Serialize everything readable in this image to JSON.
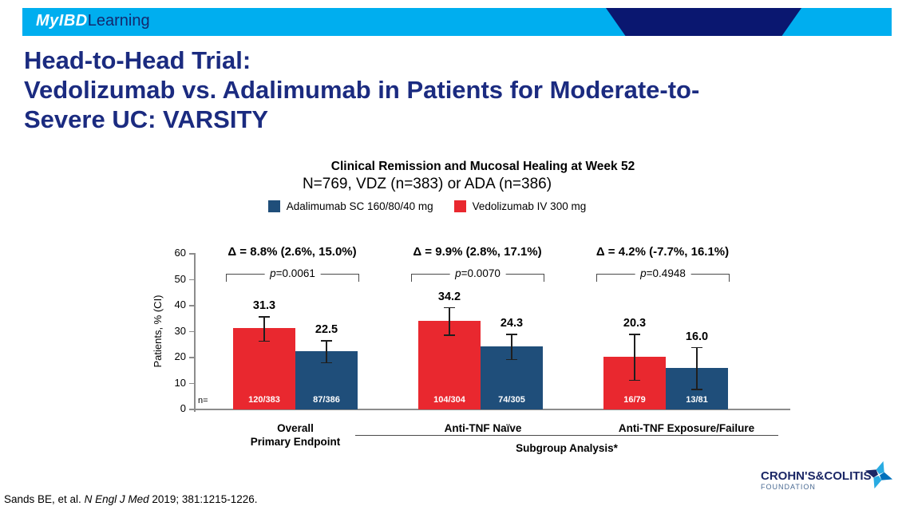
{
  "header": {
    "logo_myibd": "MyIBD",
    "logo_learning": "Learning",
    "bar_color": "#00AEEF",
    "accent_color": "#0A1770"
  },
  "title": {
    "lines": [
      "Head-to-Head Trial:",
      "Vedolizumab vs. Adalimumab in Patients for Moderate-to-",
      "Severe UC: VARSITY"
    ],
    "color": "#1B2B80"
  },
  "legend": [
    {
      "label": "Adalimumab SC 160/80/40 mg",
      "color": "#1F4E7A"
    },
    {
      "label": "Vedolizumab IV 300 mg",
      "color": "#E9282F"
    }
  ],
  "chart_data": {
    "type": "bar",
    "title": "Clinical Remission and Mucosal Healing at Week 52",
    "subtitle": "N=769, VDZ (n=383) or ADA (n=386)",
    "ylabel": "Patients, % (CI)",
    "xlabel": "",
    "ylim": [
      0,
      60
    ],
    "yticks": [
      0,
      10,
      20,
      30,
      40,
      50,
      60
    ],
    "grid": false,
    "legend_position": "top",
    "n_axis_label": "n=",
    "categories": [
      "Overall Primary Endpoint",
      "Anti-TNF Naïve",
      "Anti-TNF Exposure/Failure"
    ],
    "series": [
      {
        "name": "Vedolizumab IV 300 mg",
        "color": "#E9282F",
        "values": [
          31.3,
          34.2,
          20.3
        ],
        "ci_low": [
          26.6,
          28.9,
          11.4
        ],
        "ci_high": [
          36.0,
          39.5,
          29.2
        ],
        "n_labels": [
          "120/383",
          "104/304",
          "16/79"
        ]
      },
      {
        "name": "Adalimumab SC 160/80/40 mg",
        "color": "#1F4E7A",
        "values": [
          22.5,
          24.3,
          16.0
        ],
        "ci_low": [
          18.3,
          19.5,
          8.0
        ],
        "ci_high": [
          26.7,
          29.1,
          24.1
        ],
        "n_labels": [
          "87/386",
          "74/305",
          "13/81"
        ]
      }
    ],
    "groups": [
      {
        "label_lines": [
          "Overall",
          "Primary Endpoint"
        ],
        "delta": "Δ = 8.8% (2.6%, 15.0%)",
        "p_sym": "p",
        "p_val": "=0.0061"
      },
      {
        "label_lines": [
          "Anti-TNF Naïve"
        ],
        "delta": "Δ = 9.9% (2.8%, 17.1%)",
        "p_sym": "p",
        "p_val": "=0.0070"
      },
      {
        "label_lines": [
          "Anti-TNF Exposure/Failure"
        ],
        "delta": "Δ = 4.2% (-7.7%, 16.1%)",
        "p_sym": "p",
        "p_val": "=0.4948"
      }
    ],
    "subgroup_label": "Subgroup Analysis*"
  },
  "footer": {
    "citation_prefix": "Sands BE, et al. ",
    "citation_journal": "N Engl J Med",
    "citation_suffix": " 2019; 381:1215-1226."
  },
  "foundation": {
    "name": "CROHN'S&COLITIS",
    "sub": "FOUNDATION"
  }
}
